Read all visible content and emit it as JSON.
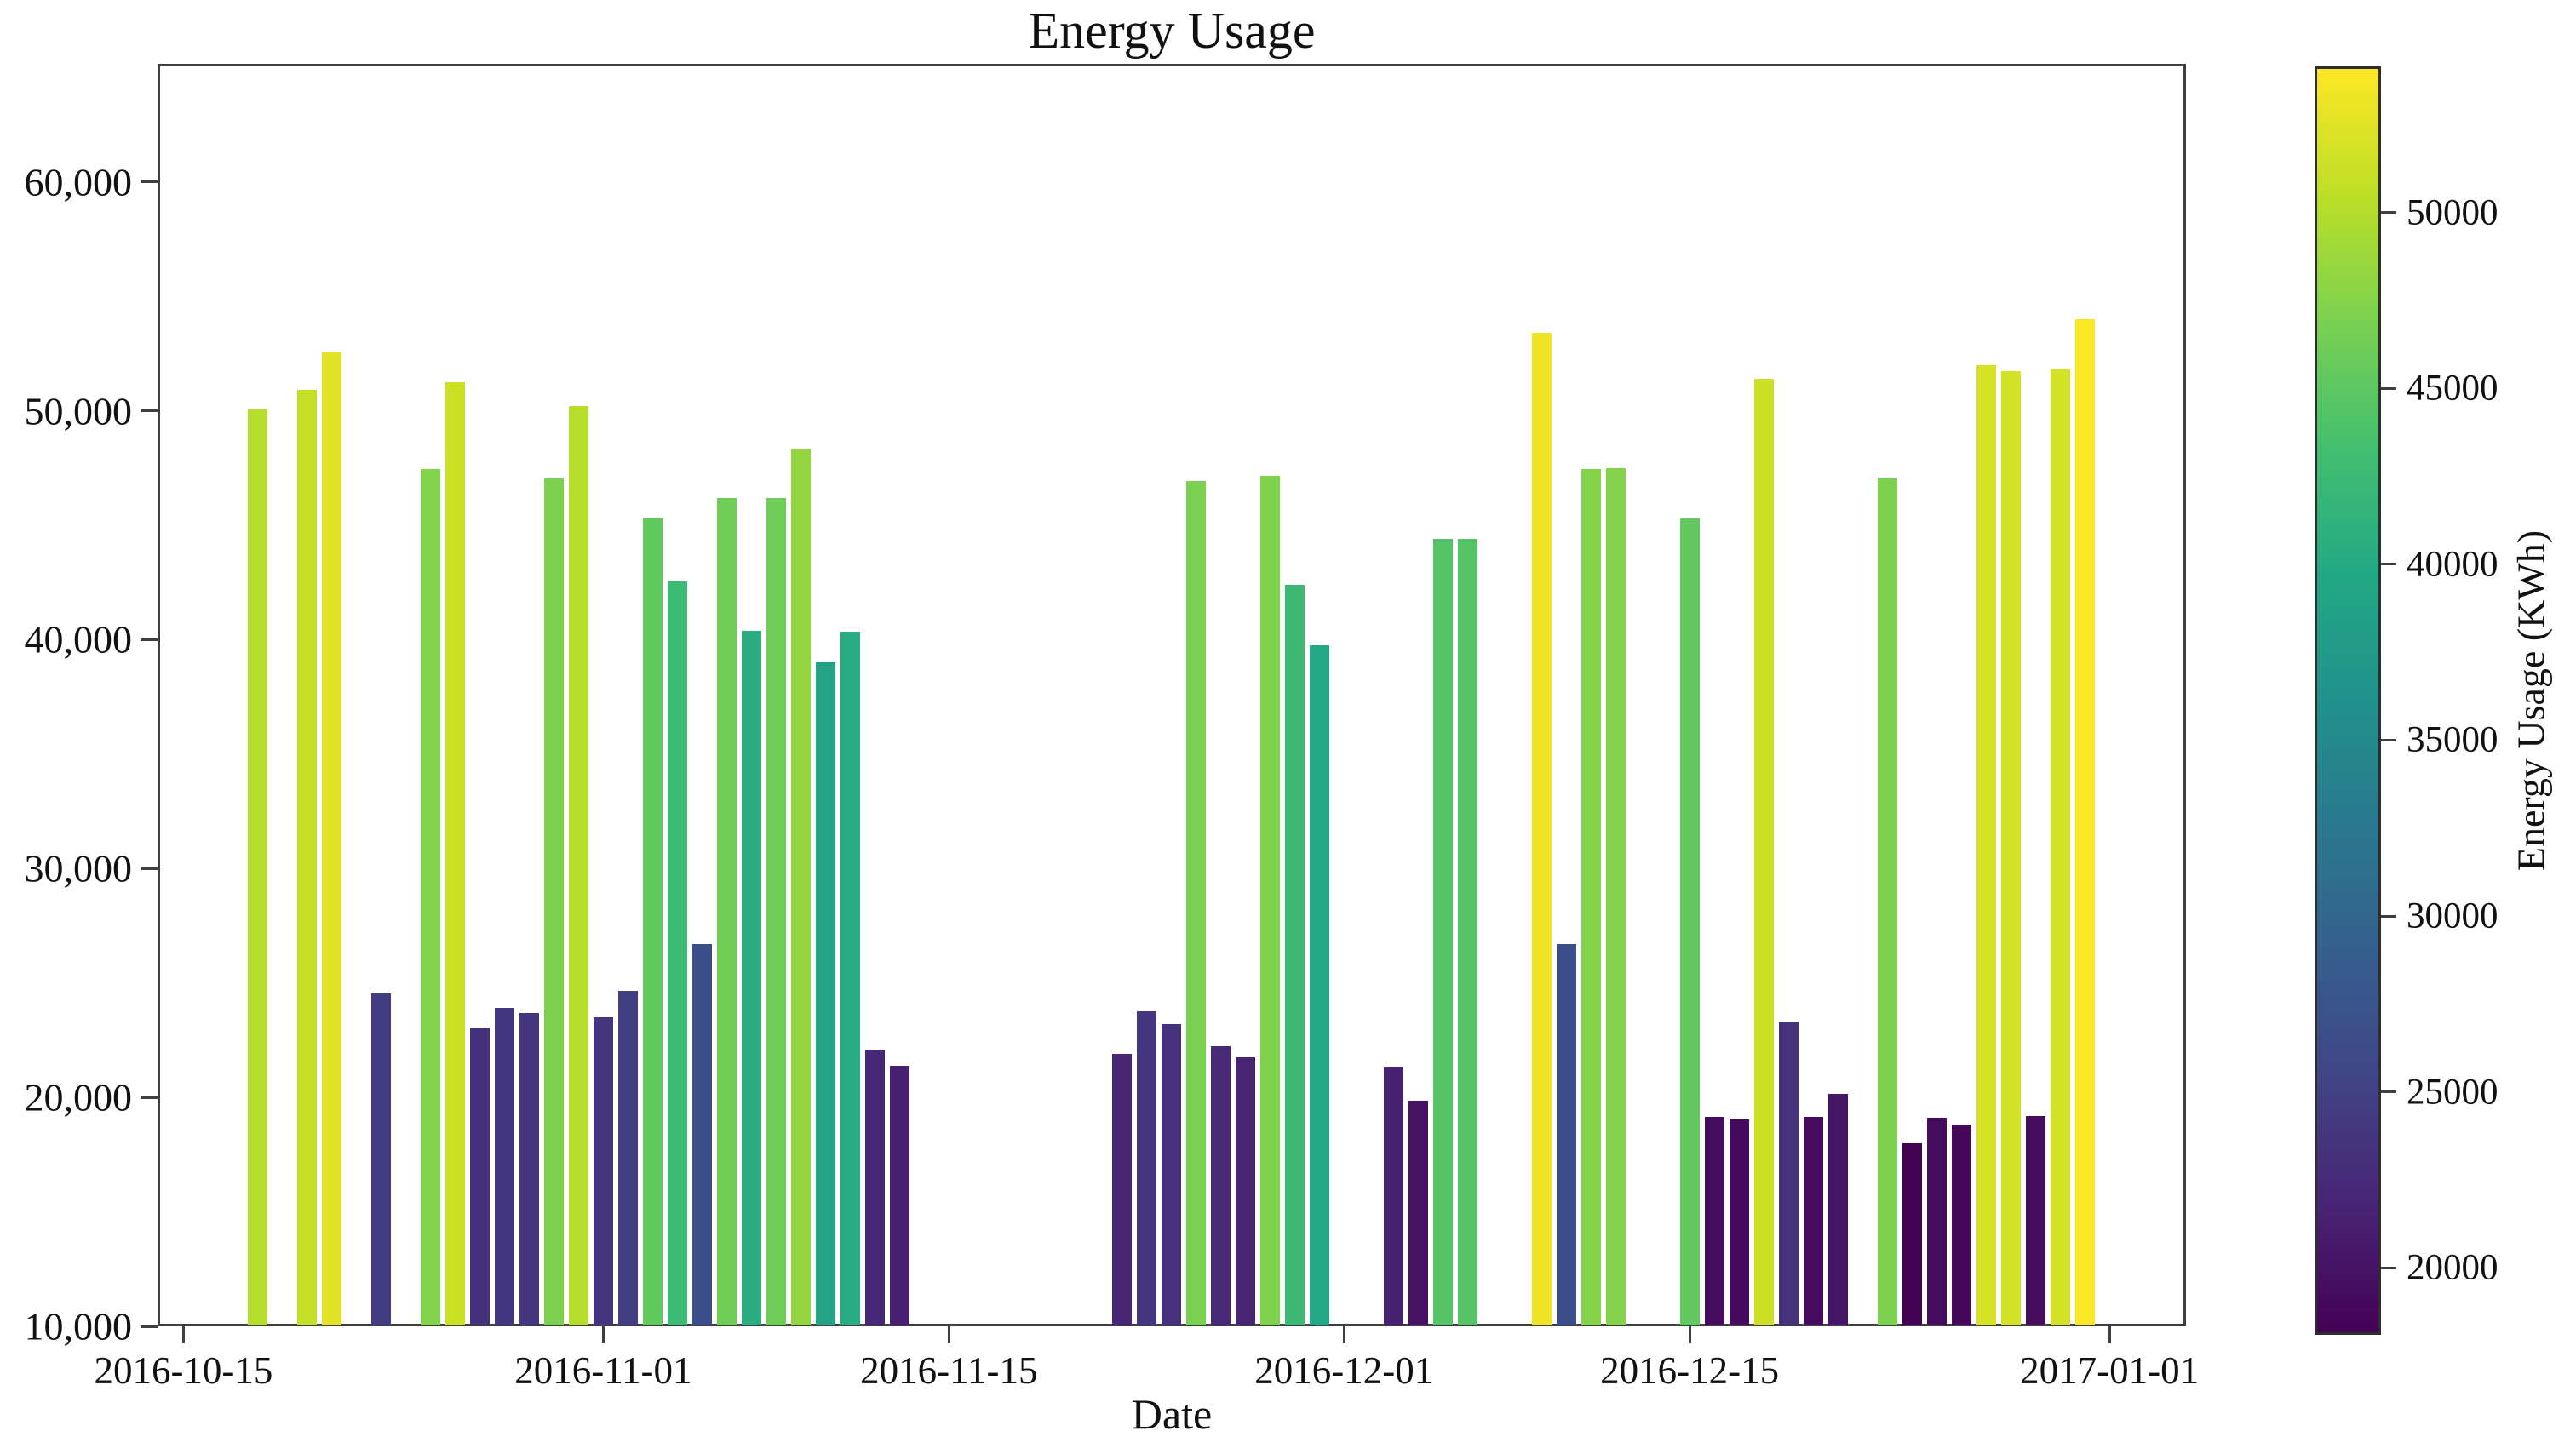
{
  "title": "Energy Usage",
  "axes": {
    "x_label": "Date",
    "x_ticks": [
      {
        "date": "2016-10-15",
        "label": "2016-10-15"
      },
      {
        "date": "2016-11-01",
        "label": "2016-11-01"
      },
      {
        "date": "2016-11-15",
        "label": "2016-11-15"
      },
      {
        "date": "2016-12-01",
        "label": "2016-12-01"
      },
      {
        "date": "2016-12-15",
        "label": "2016-12-15"
      },
      {
        "date": "2017-01-01",
        "label": "2017-01-01"
      }
    ],
    "y_ticks": [
      {
        "value": 10000,
        "label": "10,000"
      },
      {
        "value": 20000,
        "label": "20,000"
      },
      {
        "value": 30000,
        "label": "30,000"
      },
      {
        "value": 40000,
        "label": "40,000"
      },
      {
        "value": 50000,
        "label": "50,000"
      },
      {
        "value": 60000,
        "label": "60,000"
      }
    ]
  },
  "colorbar": {
    "label": "Energy Usage (KWh)",
    "ticks": [
      {
        "value": 20000,
        "label": "20000"
      },
      {
        "value": 25000,
        "label": "25000"
      },
      {
        "value": 30000,
        "label": "30000"
      },
      {
        "value": 35000,
        "label": "35000"
      },
      {
        "value": 40000,
        "label": "40000"
      },
      {
        "value": 45000,
        "label": "45000"
      },
      {
        "value": 50000,
        "label": "50000"
      }
    ],
    "vmin": 18100,
    "vmax": 54150,
    "colormap": "viridis",
    "stops": [
      "#440154",
      "#482475",
      "#414487",
      "#355f8d",
      "#2a788e",
      "#21918c",
      "#22a884",
      "#44bf70",
      "#7ad151",
      "#bddf26",
      "#fde725"
    ]
  },
  "chart_data": {
    "type": "bar",
    "title": "Energy Usage",
    "xlabel": "Date",
    "ylabel": "Energy Usage (KWh)",
    "x_unit": "date",
    "ylim": [
      10000,
      65160
    ],
    "xlim_day_offsets_from_first_tick": [
      -1.05,
      81.1
    ],
    "bar_width_days": 0.8,
    "grid": false,
    "legend": "none (colorbar encodes value)",
    "color_encoding": "bar value mapped through viridis colormap between colorbar vmin/vmax",
    "series": [
      {
        "date": "2016-10-18",
        "value": 50100
      },
      {
        "date": "2016-10-20",
        "value": 50900
      },
      {
        "date": "2016-10-21",
        "value": 52550
      },
      {
        "date": "2016-10-23",
        "value": 24550
      },
      {
        "date": "2016-10-25",
        "value": 47450
      },
      {
        "date": "2016-10-26",
        "value": 51250
      },
      {
        "date": "2016-10-27",
        "value": 23050
      },
      {
        "date": "2016-10-28",
        "value": 23900
      },
      {
        "date": "2016-10-29",
        "value": 23700
      },
      {
        "date": "2016-10-30",
        "value": 47050
      },
      {
        "date": "2016-10-31",
        "value": 50200
      },
      {
        "date": "2016-11-01",
        "value": 23500
      },
      {
        "date": "2016-11-02",
        "value": 24650
      },
      {
        "date": "2016-11-03",
        "value": 45350
      },
      {
        "date": "2016-11-04",
        "value": 42550
      },
      {
        "date": "2016-11-05",
        "value": 26700
      },
      {
        "date": "2016-11-06",
        "value": 46200
      },
      {
        "date": "2016-11-07",
        "value": 40400
      },
      {
        "date": "2016-11-08",
        "value": 46200
      },
      {
        "date": "2016-11-09",
        "value": 48300
      },
      {
        "date": "2016-11-10",
        "value": 39000
      },
      {
        "date": "2016-11-11",
        "value": 40350
      },
      {
        "date": "2016-11-12",
        "value": 22100
      },
      {
        "date": "2016-11-13",
        "value": 21400
      },
      {
        "date": "2016-11-22",
        "value": 21900
      },
      {
        "date": "2016-11-23",
        "value": 23750
      },
      {
        "date": "2016-11-24",
        "value": 23200
      },
      {
        "date": "2016-11-25",
        "value": 46950
      },
      {
        "date": "2016-11-26",
        "value": 22250
      },
      {
        "date": "2016-11-27",
        "value": 21750
      },
      {
        "date": "2016-11-28",
        "value": 47150
      },
      {
        "date": "2016-11-29",
        "value": 42400
      },
      {
        "date": "2016-11-30",
        "value": 39750
      },
      {
        "date": "2016-12-03",
        "value": 21350
      },
      {
        "date": "2016-12-04",
        "value": 19850
      },
      {
        "date": "2016-12-05",
        "value": 44400
      },
      {
        "date": "2016-12-06",
        "value": 44400
      },
      {
        "date": "2016-12-09",
        "value": 53400
      },
      {
        "date": "2016-12-10",
        "value": 26700
      },
      {
        "date": "2016-12-11",
        "value": 47450
      },
      {
        "date": "2016-12-12",
        "value": 47500
      },
      {
        "date": "2016-12-15",
        "value": 45300
      },
      {
        "date": "2016-12-16",
        "value": 19150
      },
      {
        "date": "2016-12-17",
        "value": 19050
      },
      {
        "date": "2016-12-18",
        "value": 51400
      },
      {
        "date": "2016-12-19",
        "value": 23300
      },
      {
        "date": "2016-12-20",
        "value": 19150
      },
      {
        "date": "2016-12-21",
        "value": 20150
      },
      {
        "date": "2016-12-23",
        "value": 47050
      },
      {
        "date": "2016-12-24",
        "value": 18000
      },
      {
        "date": "2016-12-25",
        "value": 19100
      },
      {
        "date": "2016-12-26",
        "value": 18800
      },
      {
        "date": "2016-12-27",
        "value": 52000
      },
      {
        "date": "2016-12-28",
        "value": 51750
      },
      {
        "date": "2016-12-29",
        "value": 19200
      },
      {
        "date": "2016-12-30",
        "value": 51800
      },
      {
        "date": "2016-12-31",
        "value": 54000
      }
    ]
  }
}
